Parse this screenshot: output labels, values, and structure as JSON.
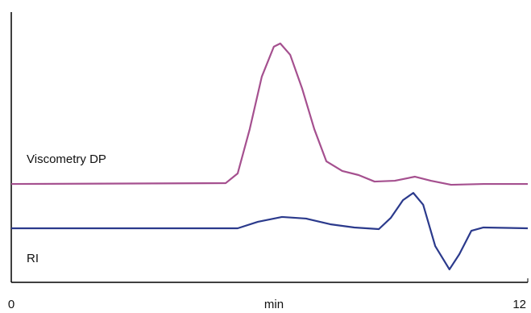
{
  "chart_data": {
    "type": "line",
    "xlabel": "min",
    "x_series_note_free": true,
    "xlim": [
      0,
      12
    ],
    "xticks": [
      0,
      12
    ],
    "ylim": [
      0,
      100
    ],
    "series": [
      {
        "name": "Viscometry DP",
        "color": "#a5508f",
        "x": [
          0,
          4.98,
          5.26,
          5.54,
          5.82,
          6.1,
          6.25,
          6.48,
          6.76,
          7.04,
          7.32,
          7.69,
          8.07,
          8.44,
          8.91,
          9.38,
          9.75,
          10.22,
          10.97,
          12
        ],
        "values": [
          36.4,
          36.7,
          40.3,
          56.7,
          76.1,
          87.2,
          88.4,
          84.2,
          71.6,
          56.7,
          44.8,
          41.2,
          39.7,
          37.3,
          37.6,
          39.1,
          37.6,
          36.1,
          36.4,
          36.4
        ]
      },
      {
        "name": "RI",
        "color": "#2b3a8c",
        "x": [
          0,
          5.26,
          5.73,
          6.29,
          6.85,
          7.41,
          7.97,
          8.54,
          8.82,
          9.1,
          9.34,
          9.57,
          9.85,
          10.18,
          10.41,
          10.69,
          10.97,
          12
        ],
        "values": [
          20,
          20,
          22.4,
          24.2,
          23.6,
          21.5,
          20.3,
          19.7,
          23.9,
          30.4,
          33.1,
          28.7,
          13.4,
          4.8,
          10.4,
          19.1,
          20.3,
          20
        ]
      }
    ]
  }
}
